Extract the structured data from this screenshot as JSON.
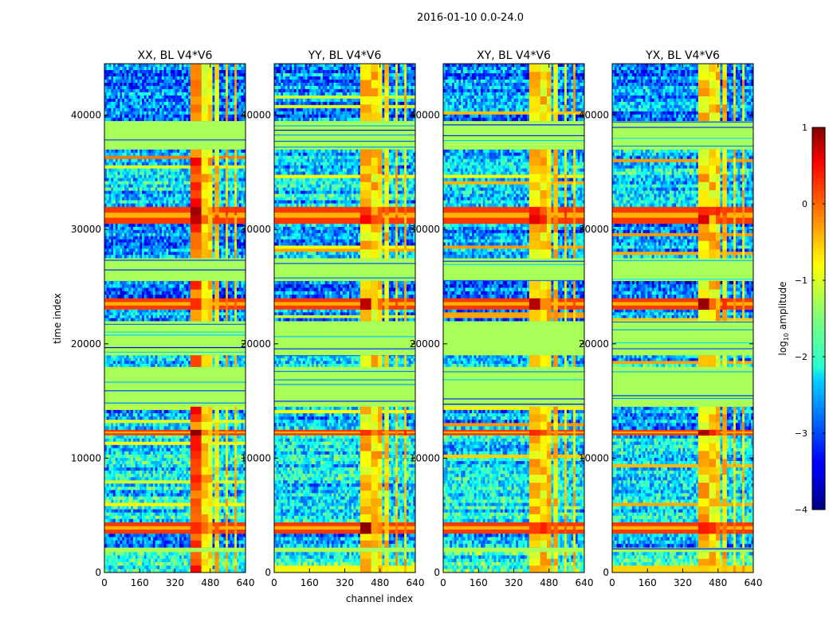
{
  "chart_data": {
    "type": "heatmap",
    "suptitle": "2016-01-10 0.0-24.0",
    "xlabel": "channel index",
    "ylabel": "time index",
    "xlim": [
      0,
      640
    ],
    "ylim": [
      0,
      44500
    ],
    "x_ticks": [
      0,
      160,
      320,
      480,
      640
    ],
    "y_ticks": [
      0,
      10000,
      20000,
      30000,
      40000
    ],
    "panels": [
      {
        "title": "XX, BL V4*V6"
      },
      {
        "title": "YY, BL V4*V6"
      },
      {
        "title": "XY, BL V4*V6"
      },
      {
        "title": "YX, BL V4*V6"
      }
    ],
    "colorbar": {
      "label_main": "log",
      "label_sub": "10",
      "label_tail": " amplitude",
      "range": [
        -4,
        1
      ],
      "ticks": [
        1,
        0,
        -1,
        -2,
        -3,
        -4
      ],
      "tick_labels": [
        "1",
        "0",
        "−1",
        "−2",
        "−3",
        "−4"
      ],
      "colormap": "jet"
    },
    "bands": [
      {
        "t0": 0,
        "t1": 1800,
        "kind": "noise",
        "level": -2.0
      },
      {
        "t0": 1800,
        "t1": 2200,
        "kind": "flag"
      },
      {
        "t0": 2200,
        "t1": 3400,
        "kind": "noise",
        "level": -2.6
      },
      {
        "t0": 3400,
        "t1": 4400,
        "kind": "strong"
      },
      {
        "t0": 4400,
        "t1": 12000,
        "kind": "noise",
        "level": -2.2
      },
      {
        "t0": 12000,
        "t1": 12500,
        "kind": "strong"
      },
      {
        "t0": 12500,
        "t1": 14500,
        "kind": "noise",
        "level": -2.5
      },
      {
        "t0": 14500,
        "t1": 18000,
        "kind": "flag"
      },
      {
        "t0": 18000,
        "t1": 19000,
        "kind": "noise",
        "level": -2.3
      },
      {
        "t0": 19000,
        "t1": 22000,
        "kind": "flag"
      },
      {
        "t0": 22000,
        "t1": 23000,
        "kind": "noise",
        "level": -2.6
      },
      {
        "t0": 23000,
        "t1": 24000,
        "kind": "strong"
      },
      {
        "t0": 24000,
        "t1": 25500,
        "kind": "noise",
        "level": -2.8
      },
      {
        "t0": 25500,
        "t1": 27500,
        "kind": "flag"
      },
      {
        "t0": 27500,
        "t1": 30500,
        "kind": "noise",
        "level": -2.6
      },
      {
        "t0": 30500,
        "t1": 32000,
        "kind": "strong"
      },
      {
        "t0": 32000,
        "t1": 37000,
        "kind": "noise",
        "level": -2.3
      },
      {
        "t0": 37000,
        "t1": 39500,
        "kind": "flag"
      },
      {
        "t0": 39500,
        "t1": 44500,
        "kind": "noise",
        "level": -2.7
      }
    ],
    "rfi_channels": [
      [
        390,
        440
      ],
      [
        440,
        470
      ],
      [
        470,
        490
      ],
      [
        500,
        520
      ],
      [
        550,
        560
      ],
      [
        590,
        600
      ]
    ]
  }
}
